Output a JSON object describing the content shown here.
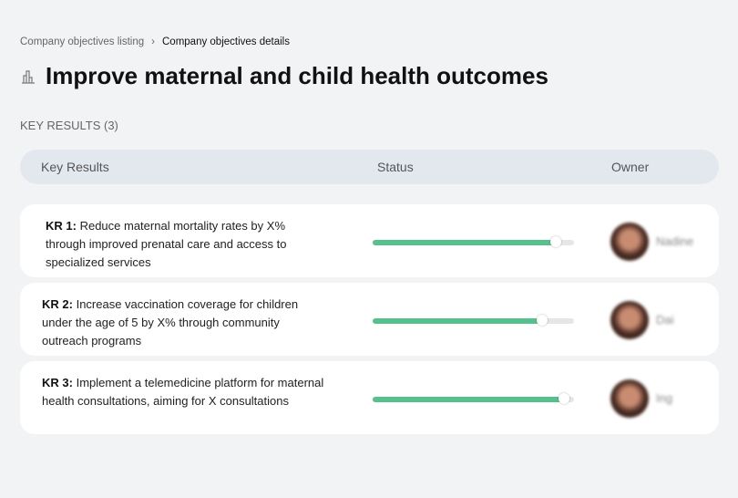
{
  "breadcrumb": {
    "parent": "Company objectives listing",
    "separator": "›",
    "current": "Company objectives details"
  },
  "page": {
    "icon": "building-chart-icon",
    "title": "Improve maternal and child health outcomes"
  },
  "section_label": "KEY RESULTS (3)",
  "table": {
    "headers": {
      "key_results": "Key Results",
      "status": "Status",
      "owner": "Owner"
    },
    "rows": [
      {
        "id": "KR 1:",
        "text": "Reduce maternal mortality rates by X% through improved prenatal care and access to specialized services",
        "progress": 91,
        "owner": "Nadine"
      },
      {
        "id": "KR 2:",
        "text": "Increase vaccination coverage for children under the age of 5 by X% through community outreach programs",
        "progress": 84,
        "owner": "Dai"
      },
      {
        "id": "KR 3:",
        "text": "Implement a telemedicine platform for maternal health consultations, aiming for X consultations",
        "progress": 95,
        "owner": "Ing"
      }
    ]
  },
  "colors": {
    "progress": "#55c28d",
    "track": "#e6e6e6",
    "header_bg": "#e3e8ef",
    "page_bg": "#f2f3f5"
  }
}
